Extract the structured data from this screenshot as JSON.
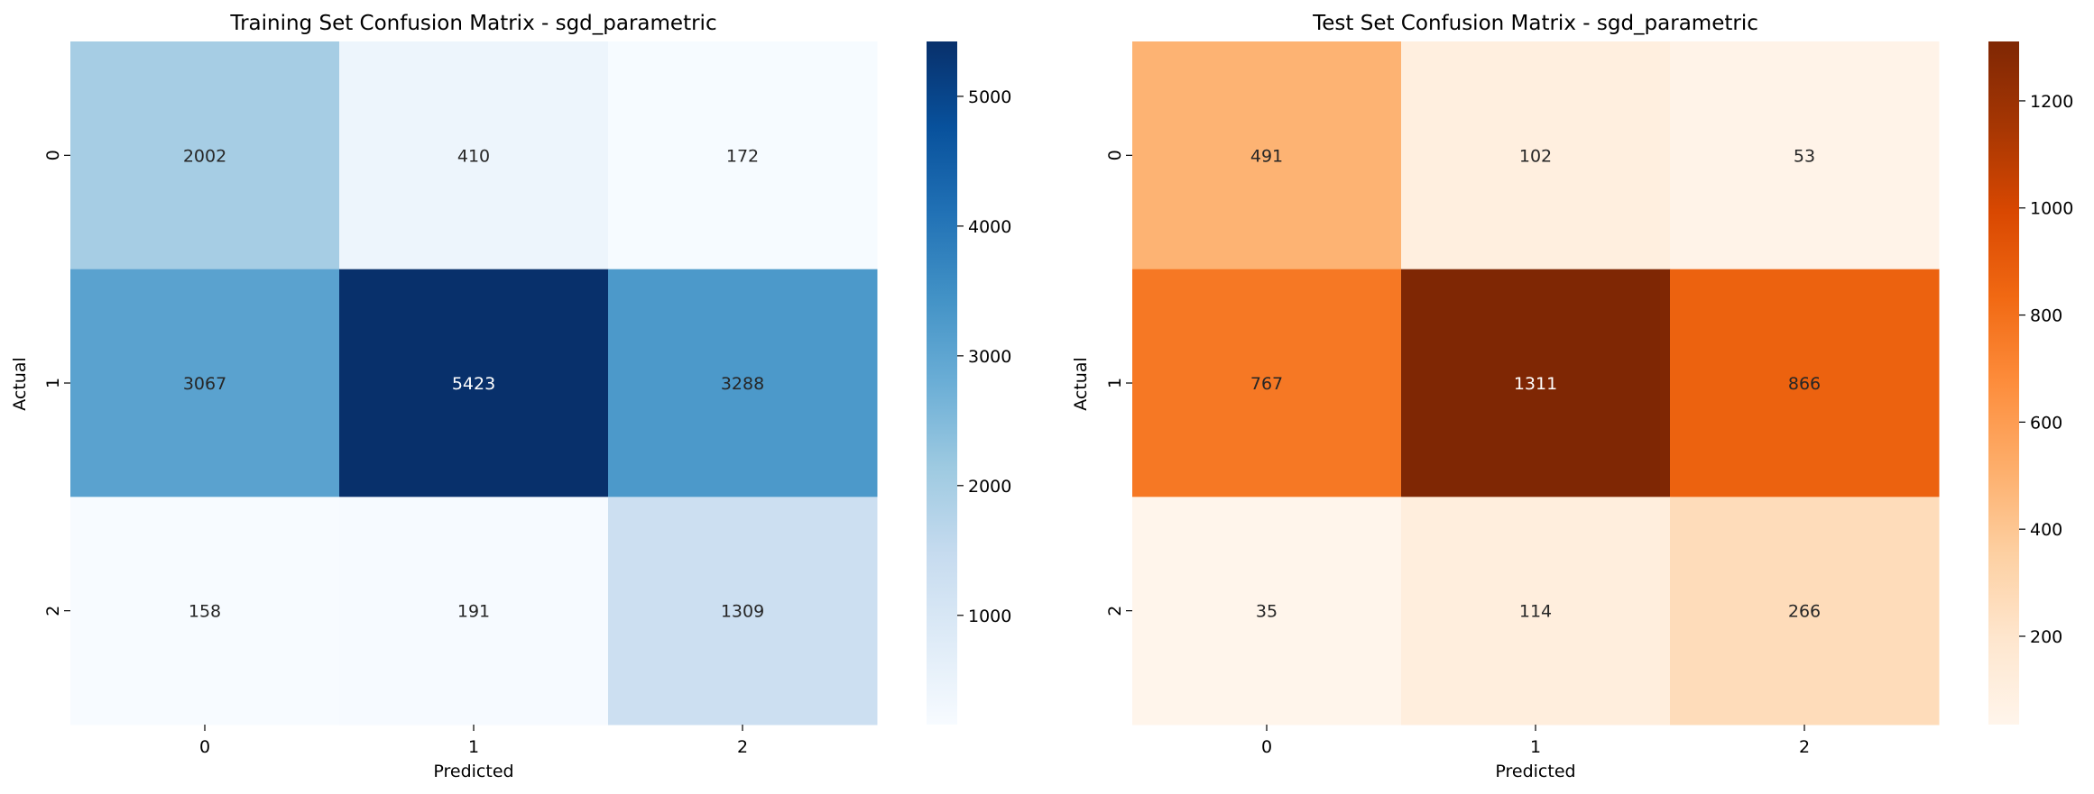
{
  "chart_data": [
    {
      "type": "heatmap",
      "title": "Training Set Confusion Matrix - sgd_parametric",
      "xlabel": "Predicted",
      "ylabel": "Actual",
      "x_categories": [
        "0",
        "1",
        "2"
      ],
      "y_categories": [
        "0",
        "1",
        "2"
      ],
      "values": [
        [
          2002,
          410,
          172
        ],
        [
          3067,
          5423,
          3288
        ],
        [
          158,
          191,
          1309
        ]
      ],
      "colormap": "Blues",
      "colors": [
        "#f7fbff",
        "#deebf7",
        "#c6dbef",
        "#9ecae1",
        "#6baed6",
        "#4292c6",
        "#2171b5",
        "#08519c",
        "#08306b"
      ],
      "color_range": [
        158,
        5423
      ],
      "colorbar_ticks": [
        "1000",
        "2000",
        "3000",
        "4000",
        "5000"
      ]
    },
    {
      "type": "heatmap",
      "title": "Test Set Confusion Matrix - sgd_parametric",
      "xlabel": "Predicted",
      "ylabel": "Actual",
      "x_categories": [
        "0",
        "1",
        "2"
      ],
      "y_categories": [
        "0",
        "1",
        "2"
      ],
      "values": [
        [
          491,
          102,
          53
        ],
        [
          767,
          1311,
          866
        ],
        [
          35,
          114,
          266
        ]
      ],
      "colormap": "Oranges",
      "colors": [
        "#fff5eb",
        "#fee6ce",
        "#fdd0a2",
        "#fdae6b",
        "#fd8d3c",
        "#f16913",
        "#d94801",
        "#a63603",
        "#7f2704"
      ],
      "color_range": [
        35,
        1311
      ],
      "colorbar_ticks": [
        "200",
        "400",
        "600",
        "800",
        "1000",
        "1200"
      ]
    }
  ]
}
